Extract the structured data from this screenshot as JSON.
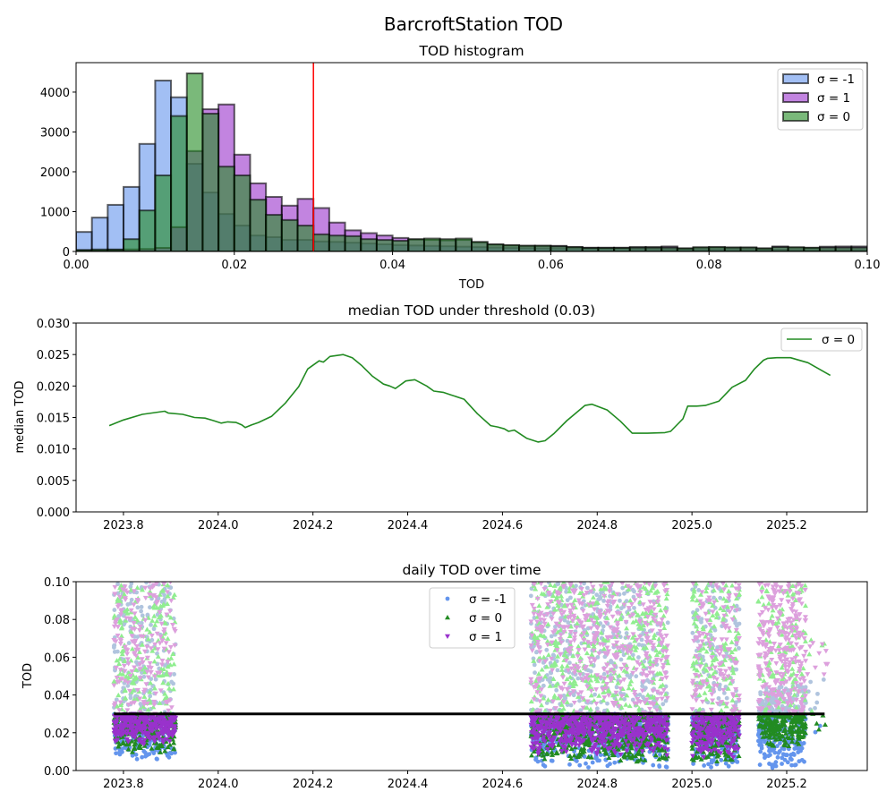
{
  "figure": {
    "title": "BarcroftStation TOD"
  },
  "chart_data": [
    {
      "type": "bar",
      "title": "TOD histogram",
      "xlabel": "TOD",
      "ylabel": "",
      "xlim": [
        0,
        0.1
      ],
      "ylim": [
        0,
        4740
      ],
      "bin_width": 0.002,
      "bin_start": 0,
      "xticks": [
        0,
        0.02,
        0.04,
        0.06,
        0.08,
        0.1
      ],
      "xtick_labels": [
        "0.00",
        "0.02",
        "0.04",
        "0.06",
        "0.08",
        "0.10"
      ],
      "yticks": [
        0,
        1000,
        2000,
        3000,
        4000
      ],
      "ytick_labels": [
        "0",
        "1000",
        "2000",
        "3000",
        "4000"
      ],
      "threshold_line": {
        "x": 0.03,
        "color": "#ff0000"
      },
      "legend": "top-right",
      "series": [
        {
          "name": "σ = -1",
          "color": "#6495ed",
          "values": [
            490,
            850,
            1170,
            1620,
            2700,
            4290,
            3870,
            2200,
            1480,
            940,
            650,
            400,
            360,
            290,
            290,
            250,
            240,
            220,
            200,
            180,
            160,
            150,
            140,
            130,
            120,
            110,
            100,
            90,
            85,
            80,
            75,
            70,
            70,
            65,
            65,
            60,
            60,
            55,
            55,
            50,
            50,
            50,
            45,
            45,
            45,
            40,
            40,
            40,
            40,
            40
          ]
        },
        {
          "name": "σ = 1",
          "color": "#9932cc",
          "values": [
            20,
            30,
            40,
            50,
            60,
            90,
            610,
            2520,
            3570,
            3690,
            2430,
            1710,
            1370,
            1150,
            1320,
            1090,
            725,
            530,
            460,
            400,
            340,
            300,
            290,
            280,
            290,
            230,
            170,
            150,
            140,
            140,
            140,
            110,
            95,
            95,
            95,
            110,
            110,
            125,
            75,
            100,
            105,
            100,
            100,
            75,
            125,
            100,
            90,
            120,
            125,
            125
          ]
        },
        {
          "name": "σ = 0",
          "color": "#228b22",
          "values": [
            40,
            50,
            50,
            310,
            1030,
            1910,
            3400,
            4470,
            3460,
            2130,
            1910,
            1300,
            920,
            790,
            650,
            430,
            400,
            385,
            310,
            290,
            270,
            310,
            325,
            310,
            325,
            240,
            180,
            160,
            145,
            145,
            130,
            110,
            90,
            90,
            90,
            100,
            100,
            100,
            80,
            105,
            110,
            100,
            100,
            80,
            110,
            105,
            95,
            100,
            100,
            100
          ]
        }
      ]
    },
    {
      "type": "line",
      "title": "median TOD under threshold (0.03)",
      "xlabel": "",
      "ylabel": "median TOD",
      "xlim": [
        2023.7,
        2025.37
      ],
      "ylim": [
        0,
        0.03
      ],
      "xticks": [
        2023.8,
        2024.0,
        2024.2,
        2024.4,
        2024.6,
        2024.8,
        2025.0,
        2025.2
      ],
      "xtick_labels": [
        "2023.8",
        "2024.0",
        "2024.2",
        "2024.4",
        "2024.6",
        "2024.8",
        "2025.0",
        "2025.2"
      ],
      "yticks": [
        0,
        0.005,
        0.01,
        0.015,
        0.02,
        0.025,
        0.03
      ],
      "ytick_labels": [
        "0.000",
        "0.005",
        "0.010",
        "0.015",
        "0.020",
        "0.025",
        "0.030"
      ],
      "legend": "top-right",
      "series": [
        {
          "name": "σ = 0",
          "color": "#228b22",
          "x": [
            2023.77,
            2023.8,
            2023.84,
            2023.887,
            2023.895,
            2023.925,
            2023.95,
            2023.972,
            2023.99,
            2024.006,
            2024.02,
            2024.038,
            2024.05,
            2024.057,
            2024.07,
            2024.085,
            2024.113,
            2024.142,
            2024.17,
            2024.189,
            2024.213,
            2024.222,
            2024.236,
            2024.264,
            2024.283,
            2024.302,
            2024.325,
            2024.349,
            2024.362,
            2024.374,
            2024.396,
            2024.415,
            2024.44,
            2024.455,
            2024.475,
            2024.491,
            2024.519,
            2024.547,
            2024.575,
            2024.59,
            2024.604,
            2024.613,
            2024.625,
            2024.651,
            2024.675,
            2024.69,
            2024.708,
            2024.736,
            2024.774,
            2024.789,
            2024.821,
            2024.849,
            2024.874,
            2024.906,
            2024.943,
            2024.955,
            2024.981,
            2024.991,
            2025.01,
            2025.028,
            2025.057,
            2025.085,
            2025.113,
            2025.132,
            2025.151,
            2025.16,
            2025.179,
            2025.208,
            2025.245,
            2025.292
          ],
          "y": [
            0.0137,
            0.0146,
            0.0155,
            0.016,
            0.0157,
            0.0155,
            0.015,
            0.0149,
            0.0145,
            0.0141,
            0.0143,
            0.0142,
            0.0138,
            0.0134,
            0.0138,
            0.0142,
            0.0152,
            0.0173,
            0.0199,
            0.0227,
            0.024,
            0.0238,
            0.0247,
            0.025,
            0.0245,
            0.0233,
            0.0216,
            0.0203,
            0.02,
            0.0196,
            0.0208,
            0.021,
            0.02,
            0.0192,
            0.019,
            0.0186,
            0.0179,
            0.0156,
            0.0137,
            0.0135,
            0.0132,
            0.0128,
            0.013,
            0.0117,
            0.0111,
            0.0113,
            0.0124,
            0.0145,
            0.0169,
            0.0171,
            0.0162,
            0.0144,
            0.0125,
            0.0125,
            0.0126,
            0.0128,
            0.0148,
            0.0168,
            0.0168,
            0.0169,
            0.0176,
            0.0198,
            0.0209,
            0.0227,
            0.0241,
            0.0244,
            0.0245,
            0.0245,
            0.0237,
            0.0217
          ]
        }
      ]
    },
    {
      "type": "scatter",
      "title": "daily TOD over time",
      "xlabel": "",
      "ylabel": "TOD",
      "xlim": [
        2023.7,
        2025.37
      ],
      "ylim": [
        0,
        0.1
      ],
      "xticks": [
        2023.8,
        2024.0,
        2024.2,
        2024.4,
        2024.6,
        2024.8,
        2025.0,
        2025.2
      ],
      "xtick_labels": [
        "2023.8",
        "2024.0",
        "2024.2",
        "2024.4",
        "2024.6",
        "2024.8",
        "2025.0",
        "2025.2"
      ],
      "yticks": [
        0,
        0.02,
        0.04,
        0.06,
        0.08,
        0.1
      ],
      "ytick_labels": [
        "0.00",
        "0.02",
        "0.04",
        "0.06",
        "0.08",
        "0.10"
      ],
      "legend": "upper-center",
      "threshold": {
        "y": 0.03,
        "x_range": [
          2023.78,
          2025.28
        ],
        "color": "#000000"
      },
      "series": [
        {
          "name": "σ = -1",
          "marker": "hexagon",
          "color": "#6495ed",
          "color_above_threshold": "#b0c4de",
          "clusters": [
            {
              "x": [
                2023.78,
                2023.91
              ],
              "y": [
                0.004,
                0.1
              ]
            },
            {
              "x": [
                2024.66,
                2024.95
              ],
              "y": [
                0.0,
                0.1
              ]
            },
            {
              "x": [
                2025.0,
                2025.1
              ],
              "y": [
                0.0,
                0.1
              ]
            },
            {
              "x": [
                2025.14,
                2025.24
              ],
              "y": [
                0.0,
                0.045
              ]
            },
            {
              "x": [
                2025.24,
                2025.29
              ],
              "y": [
                0.017,
                0.05
              ]
            }
          ]
        },
        {
          "name": "σ = 0",
          "marker": "triangle-up",
          "color": "#228b22",
          "color_above_threshold": "#90ee90",
          "clusters": [
            {
              "x": [
                2023.78,
                2023.91
              ],
              "y": [
                0.009,
                0.1
              ]
            },
            {
              "x": [
                2024.66,
                2024.95
              ],
              "y": [
                0.004,
                0.1
              ]
            },
            {
              "x": [
                2025.0,
                2025.1
              ],
              "y": [
                0.003,
                0.1
              ]
            },
            {
              "x": [
                2025.14,
                2025.24
              ],
              "y": [
                0.012,
                0.1
              ]
            },
            {
              "x": [
                2025.24,
                2025.29
              ],
              "y": [
                0.02,
                0.071
              ]
            }
          ]
        },
        {
          "name": "σ = 1",
          "marker": "triangle-down",
          "color": "#9932cc",
          "color_above_threshold": "#dda0dd",
          "clusters": [
            {
              "x": [
                2023.78,
                2023.91
              ],
              "y": [
                0.013,
                0.1
              ]
            },
            {
              "x": [
                2024.66,
                2024.95
              ],
              "y": [
                0.008,
                0.1
              ]
            },
            {
              "x": [
                2025.0,
                2025.1
              ],
              "y": [
                0.006,
                0.1
              ]
            },
            {
              "x": [
                2025.14,
                2025.24
              ],
              "y": [
                0.03,
                0.1
              ]
            },
            {
              "x": [
                2025.24,
                2025.29
              ],
              "y": [
                0.05,
                0.068
              ]
            }
          ]
        }
      ]
    }
  ]
}
